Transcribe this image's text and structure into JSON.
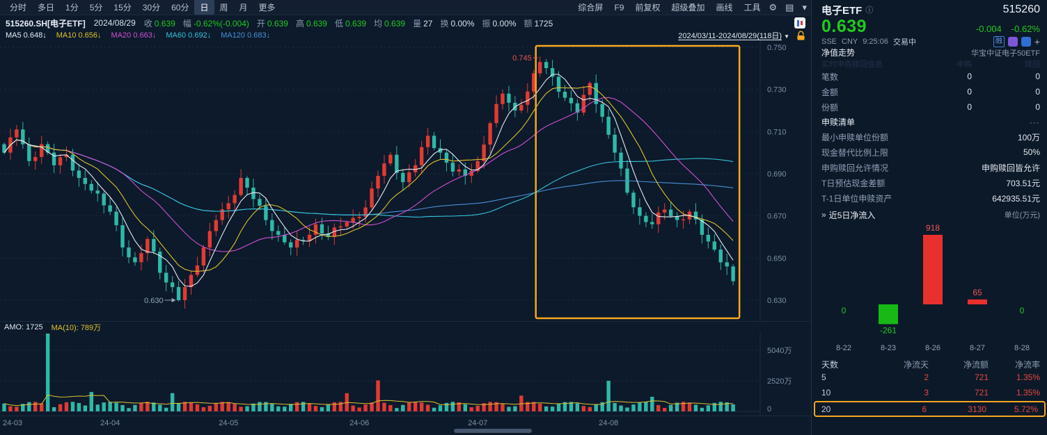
{
  "colors": {
    "up": "#e23a34",
    "down": "#2fb8a8",
    "price_down_text": "#1ecb1e",
    "accent_orange": "#f7a71f",
    "ma5": "#e6ecf2",
    "ma10": "#e0c22e",
    "ma20": "#d24fd2",
    "ma60": "#35c3d8",
    "ma120": "#4a90d9"
  },
  "toolbar": {
    "tabs": [
      "分时",
      "多日",
      "1分",
      "5分",
      "15分",
      "30分",
      "60分",
      "日",
      "周",
      "月",
      "更多"
    ],
    "active_tab": "日",
    "right_items": [
      "综合屏",
      "F9",
      "前复权",
      "超级叠加",
      "画线",
      "工具"
    ]
  },
  "info_bar": {
    "symbol": "515260.SH[电子ETF]",
    "date": "2024/08/29",
    "fields": [
      {
        "label": "收",
        "value": "0.639",
        "tone": "down"
      },
      {
        "label": "幅",
        "value": "-0.62%(-0.004)",
        "tone": "down"
      },
      {
        "label": "开",
        "value": "0.639",
        "tone": "down"
      },
      {
        "label": "高",
        "value": "0.639",
        "tone": "down"
      },
      {
        "label": "低",
        "value": "0.639",
        "tone": "down"
      },
      {
        "label": "均",
        "value": "0.639",
        "tone": "down"
      },
      {
        "label": "量",
        "value": "27",
        "tone": "flat"
      },
      {
        "label": "换",
        "value": "0.00%",
        "tone": "flat"
      },
      {
        "label": "振",
        "value": "0.00%",
        "tone": "flat"
      },
      {
        "label": "额",
        "value": "1725",
        "tone": "flat"
      }
    ]
  },
  "ma_bar": {
    "items": [
      {
        "label": "MA5",
        "value": "0.648",
        "arrow": "↓",
        "color_key": "ma5"
      },
      {
        "label": "MA10",
        "value": "0.656",
        "arrow": "↓",
        "color_key": "ma10"
      },
      {
        "label": "MA20",
        "value": "0.663",
        "arrow": "↓",
        "color_key": "ma20"
      },
      {
        "label": "MA60",
        "value": "0.692",
        "arrow": "↓",
        "color_key": "ma60"
      },
      {
        "label": "MA120",
        "value": "0.683",
        "arrow": "↓",
        "color_key": "ma120"
      }
    ],
    "range_label": "2024/03/11-2024/08/29(118日)"
  },
  "volume_panel": {
    "amo_label": "AMO: 1725",
    "ma_label": "MA(10): 789万"
  },
  "chart_data": [
    {
      "type": "candlestick",
      "symbol": "515260.SH",
      "name": "电子ETF",
      "period": "日K",
      "date_range": "2024/03/11-2024/08/29",
      "trading_days": 118,
      "y_axis_ticks": [
        0.75,
        0.73,
        0.71,
        0.69,
        0.67,
        0.65,
        0.63
      ],
      "high_label": {
        "value": 0.745,
        "day_index": 86
      },
      "low_label": {
        "value": 0.63,
        "day_index": 28
      },
      "last_close": 0.639,
      "highlight_from_day": 86,
      "month_ticks": [
        {
          "label": "24-03",
          "day_index": 0
        },
        {
          "label": "24-04",
          "day_index": 17
        },
        {
          "label": "24-05",
          "day_index": 36
        },
        {
          "label": "24-06",
          "day_index": 57
        },
        {
          "label": "24-07",
          "day_index": 76
        },
        {
          "label": "24-08",
          "day_index": 97
        }
      ],
      "close_anchors": [
        [
          0,
          0.7
        ],
        [
          2,
          0.711
        ],
        [
          4,
          0.696
        ],
        [
          6,
          0.704
        ],
        [
          8,
          0.694
        ],
        [
          10,
          0.699
        ],
        [
          12,
          0.688
        ],
        [
          14,
          0.682
        ],
        [
          17,
          0.672
        ],
        [
          19,
          0.655
        ],
        [
          21,
          0.648
        ],
        [
          23,
          0.659
        ],
        [
          25,
          0.643
        ],
        [
          28,
          0.63
        ],
        [
          30,
          0.642
        ],
        [
          32,
          0.655
        ],
        [
          34,
          0.668
        ],
        [
          36,
          0.676
        ],
        [
          38,
          0.688
        ],
        [
          40,
          0.678
        ],
        [
          42,
          0.668
        ],
        [
          44,
          0.661
        ],
        [
          46,
          0.655
        ],
        [
          48,
          0.658
        ],
        [
          50,
          0.666
        ],
        [
          52,
          0.66
        ],
        [
          54,
          0.665
        ],
        [
          56,
          0.669
        ],
        [
          58,
          0.674
        ],
        [
          60,
          0.689
        ],
        [
          62,
          0.699
        ],
        [
          64,
          0.686
        ],
        [
          66,
          0.694
        ],
        [
          68,
          0.708
        ],
        [
          70,
          0.7
        ],
        [
          72,
          0.691
        ],
        [
          74,
          0.689
        ],
        [
          76,
          0.696
        ],
        [
          78,
          0.714
        ],
        [
          80,
          0.728
        ],
        [
          82,
          0.72
        ],
        [
          84,
          0.729
        ],
        [
          86,
          0.743
        ],
        [
          88,
          0.736
        ],
        [
          90,
          0.726
        ],
        [
          92,
          0.719
        ],
        [
          94,
          0.733
        ],
        [
          96,
          0.717
        ],
        [
          98,
          0.7
        ],
        [
          100,
          0.681
        ],
        [
          102,
          0.67
        ],
        [
          104,
          0.666
        ],
        [
          106,
          0.673
        ],
        [
          108,
          0.668
        ],
        [
          110,
          0.672
        ],
        [
          112,
          0.661
        ],
        [
          114,
          0.654
        ],
        [
          116,
          0.646
        ],
        [
          117,
          0.639
        ]
      ]
    },
    {
      "type": "bar",
      "title": "近5日净流入",
      "unit": "万元",
      "categories": [
        "8-22",
        "8-23",
        "8-26",
        "8-27",
        "8-28"
      ],
      "values": [
        0,
        -261,
        918,
        65,
        0
      ]
    },
    {
      "type": "bar",
      "title": "成交额(万)",
      "amo": 1725,
      "ma10_wan": 789,
      "y_ticks_wan": [
        5040,
        2520,
        0
      ],
      "spikes": {
        "7": 6600,
        "14": 1600,
        "27": 1500,
        "55": 1500,
        "60": 2550,
        "83": 1300,
        "97": 2520,
        "104": 1200
      }
    }
  ],
  "right_panel": {
    "name": "电子ETF",
    "code": "515260",
    "price": "0.639",
    "change": "-0.004",
    "change_pct": "-0.62%",
    "exchange": "SSE",
    "currency": "CNY",
    "time": "9:25:06",
    "status": "交易中",
    "badges": [
      "融"
    ],
    "nav_label": "净值走势",
    "fund_full_name": "华宝中证电子50ETF",
    "dim_header": {
      "title": "实时申购赎回信息",
      "col1": "申购",
      "col2": "赎回"
    },
    "rt_rows": [
      {
        "label": "笔数",
        "buy": "0",
        "redeem": "0"
      },
      {
        "label": "金额",
        "buy": "0",
        "redeem": "0"
      },
      {
        "label": "份额",
        "buy": "0",
        "redeem": "0"
      }
    ],
    "section_title": "申赎清单",
    "section_more": "···",
    "detail_rows": [
      {
        "label": "最小申赎单位份额",
        "value": "100万"
      },
      {
        "label": "现金替代比例上限",
        "value": "50%"
      },
      {
        "label": "申购赎回允许情况",
        "value": "申购赎回皆允许"
      },
      {
        "label": "T日预估现金差额",
        "value": "703.51元"
      },
      {
        "label": "T-1日单位申赎资产",
        "value": "642935.51元"
      }
    ],
    "flow_title": "近5日净流入",
    "flow_unit": "单位(万元)",
    "table": {
      "headers": [
        "天数",
        "净流天",
        "净流额",
        "净流率"
      ],
      "rows": [
        {
          "days": "5",
          "net_days": "2",
          "net_amount": "721",
          "net_rate": "1.35%",
          "highlight": false
        },
        {
          "days": "10",
          "net_days": "3",
          "net_amount": "721",
          "net_rate": "1.35%",
          "highlight": false
        },
        {
          "days": "20",
          "net_days": "6",
          "net_amount": "3130",
          "net_rate": "5.72%",
          "highlight": true
        }
      ]
    }
  }
}
